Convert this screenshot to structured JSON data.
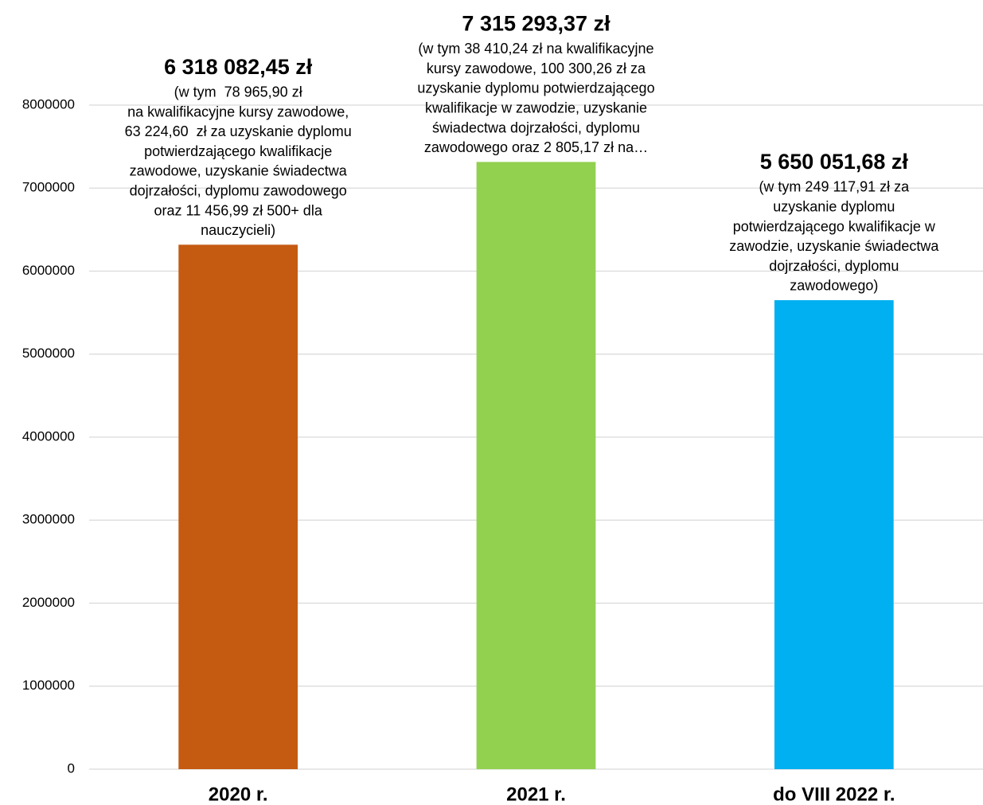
{
  "chart_data": {
    "type": "bar",
    "categories": [
      "2020 r.",
      "2021 r.",
      "do VIII 2022 r."
    ],
    "values": [
      6318082.45,
      7315293.37,
      5650051.68
    ],
    "value_labels": [
      "6 318 082,45 zł",
      "7 315 293,37 zł",
      "5 650 051,68 zł"
    ],
    "colors": [
      "#c55a11",
      "#92d050",
      "#00b0f0"
    ],
    "annotations": [
      [
        "(w tym  78 965,90 zł",
        "na kwalifikacyjne kursy zawodowe,",
        "63 224,60  zł za uzyskanie dyplomu",
        "potwierdzającego kwalifikacje",
        "zawodowe, uzyskanie świadectwa",
        "dojrzałości, dyplomu zawodowego",
        "oraz 11 456,99 zł 500+ dla",
        "nauczycieli)"
      ],
      [
        "(w tym 38 410,24 zł na kwalifikacyjne",
        "kursy zawodowe, 100 300,26 zł za",
        "uzyskanie dyplomu potwierdzającego",
        "kwalifikacje w zawodzie, uzyskanie",
        "świadectwa dojrzałości, dyplomu",
        "zawodowego oraz 2 805,17 zł na…"
      ],
      [
        "(w tym 249 117,91 zł za",
        "uzyskanie dyplomu",
        "potwierdzającego kwalifikacje w",
        "zawodzie, uzyskanie świadectwa",
        "dojrzałości, dyplomu",
        "zawodowego)"
      ]
    ],
    "ylim": [
      0,
      8000000
    ],
    "yticks": [
      0,
      1000000,
      2000000,
      3000000,
      4000000,
      5000000,
      6000000,
      7000000,
      8000000
    ],
    "grid": true
  }
}
